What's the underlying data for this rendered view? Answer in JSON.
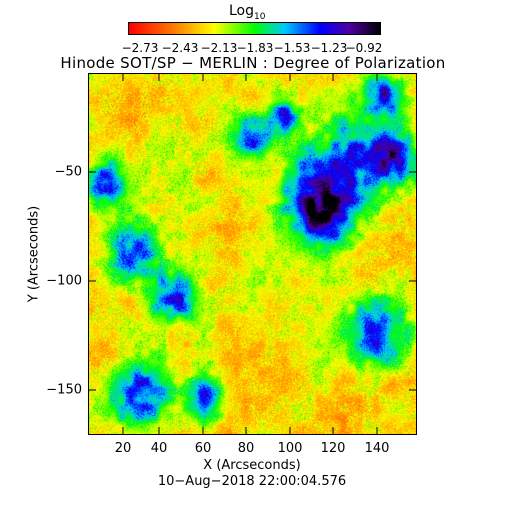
{
  "colorbar": {
    "title_main": "Log",
    "title_sub": "10",
    "ticks": [
      "−2.73",
      "−2.43",
      "−2.13",
      "−1.83",
      "−1.53",
      "−1.23",
      "−0.92"
    ],
    "colors": [
      "#ff0000",
      "#ff7a00",
      "#ffff00",
      "#00ff00",
      "#00c8ff",
      "#0000ff",
      "#5000a0",
      "#000000"
    ]
  },
  "title": "Hinode SOT/SP − MERLIN : Degree of Polarization",
  "axes": {
    "x_title": "X (Arcseconds)",
    "y_title": "Y (Arcseconds)",
    "x_ticks": [
      "20",
      "40",
      "60",
      "80",
      "100",
      "120",
      "140"
    ],
    "y_ticks": [
      "−50",
      "−100",
      "−150"
    ]
  },
  "timestamp": "10−Aug−2018 22:00:04.576"
}
